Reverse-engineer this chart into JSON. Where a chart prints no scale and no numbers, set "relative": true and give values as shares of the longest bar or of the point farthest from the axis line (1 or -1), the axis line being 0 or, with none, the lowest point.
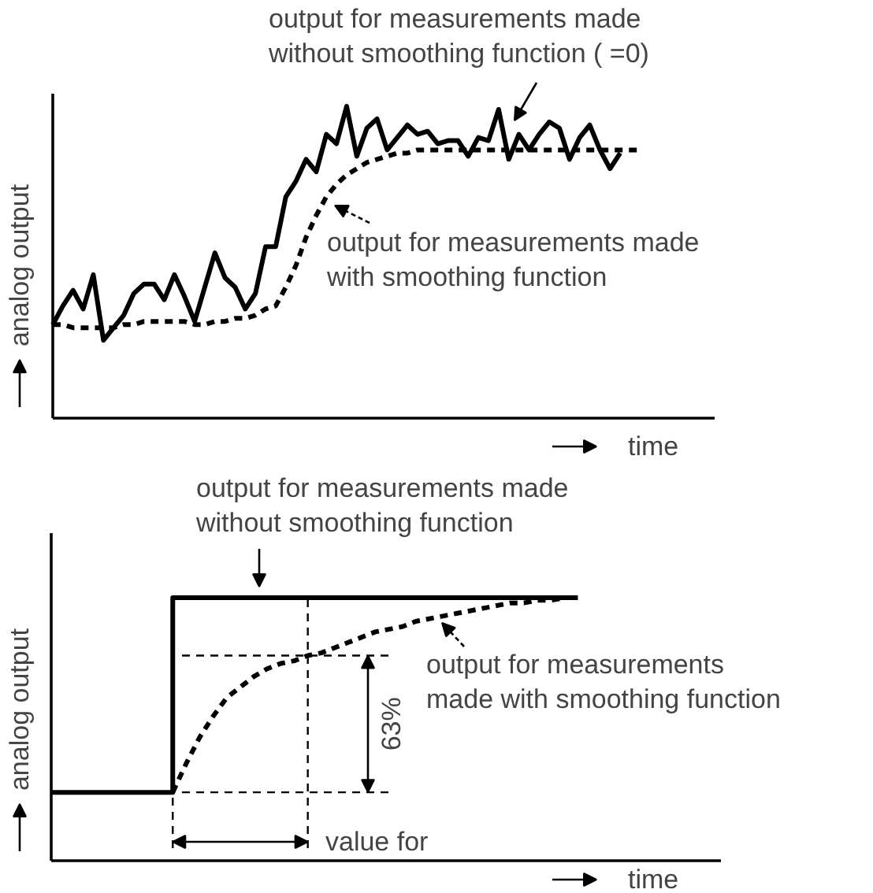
{
  "chart_data": [
    {
      "type": "line",
      "relative": true,
      "xlabel": "time",
      "ylabel": "analog output",
      "legend": "right",
      "grid": false,
      "tick_labels": false,
      "categories": [
        null,
        null,
        null,
        null,
        null,
        null,
        null,
        null,
        null,
        null,
        null,
        null,
        null,
        null,
        null,
        null,
        null,
        null,
        null,
        null,
        null,
        null,
        null,
        null,
        null,
        null,
        null,
        null,
        null,
        null,
        null,
        null,
        null,
        null,
        null,
        null,
        null,
        null,
        null,
        null,
        null,
        null,
        null,
        null,
        null,
        null,
        null,
        null,
        null,
        null,
        null,
        null,
        null,
        null,
        null,
        null,
        null,
        null,
        null
      ],
      "series": [
        {
          "name": "output for measurements made\nwithout smoothing function (   =0)",
          "color": "#000000",
          "line_style": "solid",
          "values": [
            0.3,
            0.36,
            0.41,
            0.35,
            0.46,
            0.25,
            0.29,
            0.33,
            0.4,
            0.43,
            0.43,
            0.38,
            0.46,
            0.39,
            0.31,
            0.42,
            0.53,
            0.45,
            0.42,
            0.35,
            0.4,
            0.55,
            0.55,
            0.71,
            0.76,
            0.83,
            0.79,
            0.91,
            0.88,
            1.0,
            0.84,
            0.93,
            0.96,
            0.86,
            0.9,
            0.94,
            0.91,
            0.92,
            0.88,
            0.89,
            0.89,
            0.84,
            0.9,
            0.89,
            0.99,
            0.83,
            0.91,
            0.86,
            0.91,
            0.95,
            0.93,
            0.83,
            0.9,
            0.94,
            0.86,
            0.8,
            0.85,
            null,
            null
          ]
        },
        {
          "name": "output for measurements made\nwith smoothing function",
          "color": "#000000",
          "line_style": "dashed",
          "values": [
            0.3,
            0.3,
            0.29,
            0.29,
            0.29,
            0.29,
            0.29,
            0.3,
            0.3,
            0.31,
            0.31,
            0.31,
            0.31,
            0.31,
            0.3,
            0.3,
            0.31,
            0.31,
            0.32,
            0.32,
            0.33,
            0.35,
            0.36,
            0.42,
            0.49,
            0.58,
            0.65,
            0.71,
            0.75,
            0.78,
            0.8,
            0.82,
            0.83,
            0.84,
            0.85,
            0.85,
            0.86,
            0.86,
            0.86,
            0.86,
            0.86,
            0.86,
            0.86,
            0.86,
            0.86,
            0.86,
            0.86,
            0.86,
            0.86,
            0.86,
            0.86,
            0.86,
            0.86,
            0.86,
            0.86,
            0.86,
            0.86,
            0.86,
            0.86
          ]
        }
      ]
    },
    {
      "type": "line",
      "relative": true,
      "xlabel": "time",
      "ylabel": "analog output",
      "legend": "right",
      "grid": false,
      "tick_labels": false,
      "categories": [
        null,
        null,
        null,
        null,
        null,
        null,
        null,
        null,
        null,
        null,
        null,
        null,
        null,
        null,
        null,
        null,
        null,
        null,
        null,
        null,
        null,
        null,
        null,
        null,
        null,
        null,
        null,
        null,
        null,
        null,
        null,
        null,
        null,
        null,
        null,
        null,
        null,
        null,
        null,
        null
      ],
      "series": [
        {
          "name": "output for measurements made\nwithout smoothing function",
          "type": "step",
          "color": "#000000",
          "line_style": "solid",
          "values": [
            0.26,
            0.26,
            0.26,
            0.26,
            0.26,
            0.26,
            0.26,
            0.26,
            0.26,
            1,
            1,
            1,
            1,
            1,
            1,
            1,
            1,
            1,
            1,
            1,
            1,
            1,
            1,
            1,
            1,
            1,
            1,
            1,
            1,
            1,
            1,
            1,
            1,
            1,
            1,
            1,
            1,
            1,
            1,
            1
          ]
        },
        {
          "name": "output for measurements\nmade with smoothing function",
          "color": "#000000",
          "line_style": "dashed",
          "values": [
            null,
            null,
            null,
            null,
            null,
            null,
            null,
            null,
            null,
            0.26,
            0.37,
            0.47,
            0.55,
            0.62,
            0.66,
            0.7,
            0.73,
            0.75,
            0.76,
            0.78,
            0.79,
            0.81,
            0.83,
            0.85,
            0.87,
            0.88,
            0.89,
            0.91,
            0.92,
            0.93,
            0.94,
            0.95,
            0.96,
            0.97,
            0.98,
            0.98,
            0.99,
            0.99,
            1.0,
            1.0
          ]
        }
      ],
      "ref_lines": [
        {
          "axis": "y",
          "value": 0.78,
          "line_style": "dashed"
        },
        {
          "axis": "y",
          "value": 0.26,
          "line_style": "dashed"
        }
      ],
      "annotations": [
        "63%",
        "value for"
      ]
    }
  ]
}
